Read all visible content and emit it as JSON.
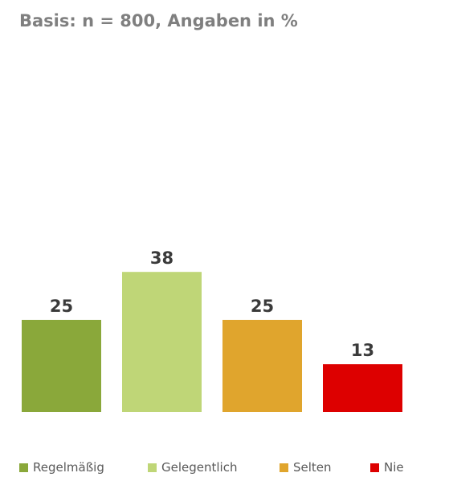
{
  "chart_data": {
    "type": "bar",
    "subtitle": "Basis: n = 800, Angaben in %",
    "categories": [
      "Regelmäßig",
      "Gelegentlich",
      "Selten",
      "Nie"
    ],
    "values": [
      25,
      38,
      25,
      13
    ],
    "colors": [
      "#8aa83a",
      "#bfd677",
      "#e0a52d",
      "#dd0000"
    ],
    "data_labels": [
      "25",
      "38",
      "25",
      "13"
    ],
    "legend": "bottom",
    "grid": false
  }
}
